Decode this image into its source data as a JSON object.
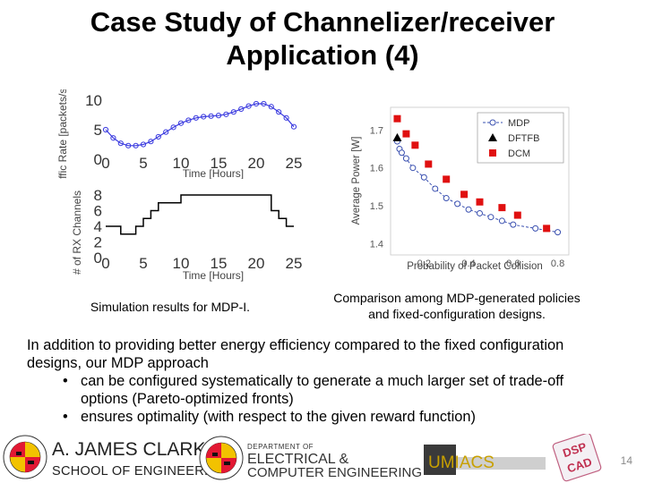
{
  "slide": {
    "title_line1": "Case Study of Channelizer/receiver",
    "title_line2": "Application (4)",
    "caption_left": "Simulation results for MDP-I.",
    "caption_right_line1": "Comparison among MDP-generated policies",
    "caption_right_line2": "and fixed-configuration designs.",
    "body_line1": "In addition to providing better energy efficiency compared to the fixed configuration",
    "body_line2": "designs, our MDP approach",
    "bullet_char": "•",
    "bullet1_line1": "can be configured systematically to generate a much larger set of trade-off",
    "bullet1_line2": "options (Pareto-optimized fronts)",
    "bullet2": "ensures optimality (with respect to the given reward function)",
    "page_number": "14"
  },
  "footer": {
    "clark_name": "A. JAMES CLARK",
    "clark_school": "SCHOOL OF ENGINEERING",
    "ece_dept": "DEPARTMENT OF",
    "ece_line1": "ELECTRICAL &",
    "ece_line2": "COMPUTER ENGINEERING",
    "umiacs": "UMIACS",
    "dspcad_top": "DSP",
    "dspcad_bottom": "CAD"
  },
  "chart_data": [
    {
      "type": "line",
      "title": "",
      "xlabel": "Time [Hours]",
      "ylabel": "Traffic Rate [packets/sec]",
      "xlim": [
        0,
        25
      ],
      "ylim": [
        0,
        10
      ],
      "xticks": [
        "0",
        "5",
        "10",
        "15",
        "20",
        "25"
      ],
      "yticks": [
        "0",
        "5",
        "10"
      ],
      "color": "#3a3adf",
      "x": [
        0,
        1,
        2,
        3,
        4,
        5,
        6,
        7,
        8,
        9,
        10,
        11,
        12,
        13,
        14,
        15,
        16,
        17,
        18,
        19,
        20,
        21,
        22,
        23,
        24,
        25
      ],
      "y": [
        5.0,
        3.6,
        2.7,
        2.3,
        2.3,
        2.5,
        3.0,
        3.8,
        4.6,
        5.4,
        6.1,
        6.6,
        7.0,
        7.2,
        7.3,
        7.4,
        7.6,
        8.0,
        8.5,
        9.0,
        9.4,
        9.4,
        8.9,
        8.0,
        7.0,
        5.5
      ]
    },
    {
      "type": "line",
      "title": "",
      "xlabel": "Time [Hours]",
      "ylabel": "# of RX Channels",
      "xlim": [
        0,
        25
      ],
      "ylim": [
        0,
        8
      ],
      "xticks": [
        "0",
        "5",
        "10",
        "15",
        "20",
        "25"
      ],
      "yticks": [
        "0",
        "2",
        "4",
        "6",
        "8"
      ],
      "color": "#000000",
      "x": [
        0,
        2,
        2,
        4,
        4,
        5,
        5,
        6,
        6,
        7,
        7,
        10,
        10,
        22,
        22,
        23,
        23,
        24,
        24,
        25
      ],
      "y": [
        4,
        4,
        3,
        3,
        4,
        4,
        5,
        5,
        6,
        6,
        7,
        7,
        8,
        8,
        6,
        6,
        5,
        5,
        4,
        4
      ]
    },
    {
      "type": "scatter",
      "title": "",
      "xlabel": "Probability of Packet Collision",
      "ylabel": "Average Power [W]",
      "xlim": [
        0.05,
        0.85
      ],
      "ylim": [
        1.37,
        1.76
      ],
      "xticks": [
        "0.2",
        "0.4",
        "0.6",
        "0.8"
      ],
      "yticks": [
        "1.4",
        "1.5",
        "1.6",
        "1.7"
      ],
      "legend": [
        "MDP",
        "DFTFB",
        "DCM"
      ],
      "series": [
        {
          "name": "MDP",
          "marker": "circle",
          "color": "#3a50b0",
          "x": [
            0.08,
            0.09,
            0.1,
            0.12,
            0.15,
            0.2,
            0.25,
            0.3,
            0.35,
            0.4,
            0.45,
            0.5,
            0.55,
            0.6,
            0.7,
            0.8
          ],
          "y": [
            1.67,
            1.65,
            1.64,
            1.625,
            1.6,
            1.575,
            1.545,
            1.52,
            1.505,
            1.49,
            1.48,
            1.47,
            1.46,
            1.45,
            1.44,
            1.43
          ]
        },
        {
          "name": "DFTFB",
          "marker": "triangle",
          "color": "#000000",
          "x": [
            0.08
          ],
          "y": [
            1.68
          ]
        },
        {
          "name": "DCM",
          "marker": "square",
          "color": "#e01010",
          "x": [
            0.08,
            0.12,
            0.16,
            0.22,
            0.3,
            0.38,
            0.45,
            0.55,
            0.62,
            0.75
          ],
          "y": [
            1.73,
            1.69,
            1.66,
            1.61,
            1.57,
            1.53,
            1.51,
            1.495,
            1.475,
            1.44
          ]
        }
      ]
    }
  ]
}
